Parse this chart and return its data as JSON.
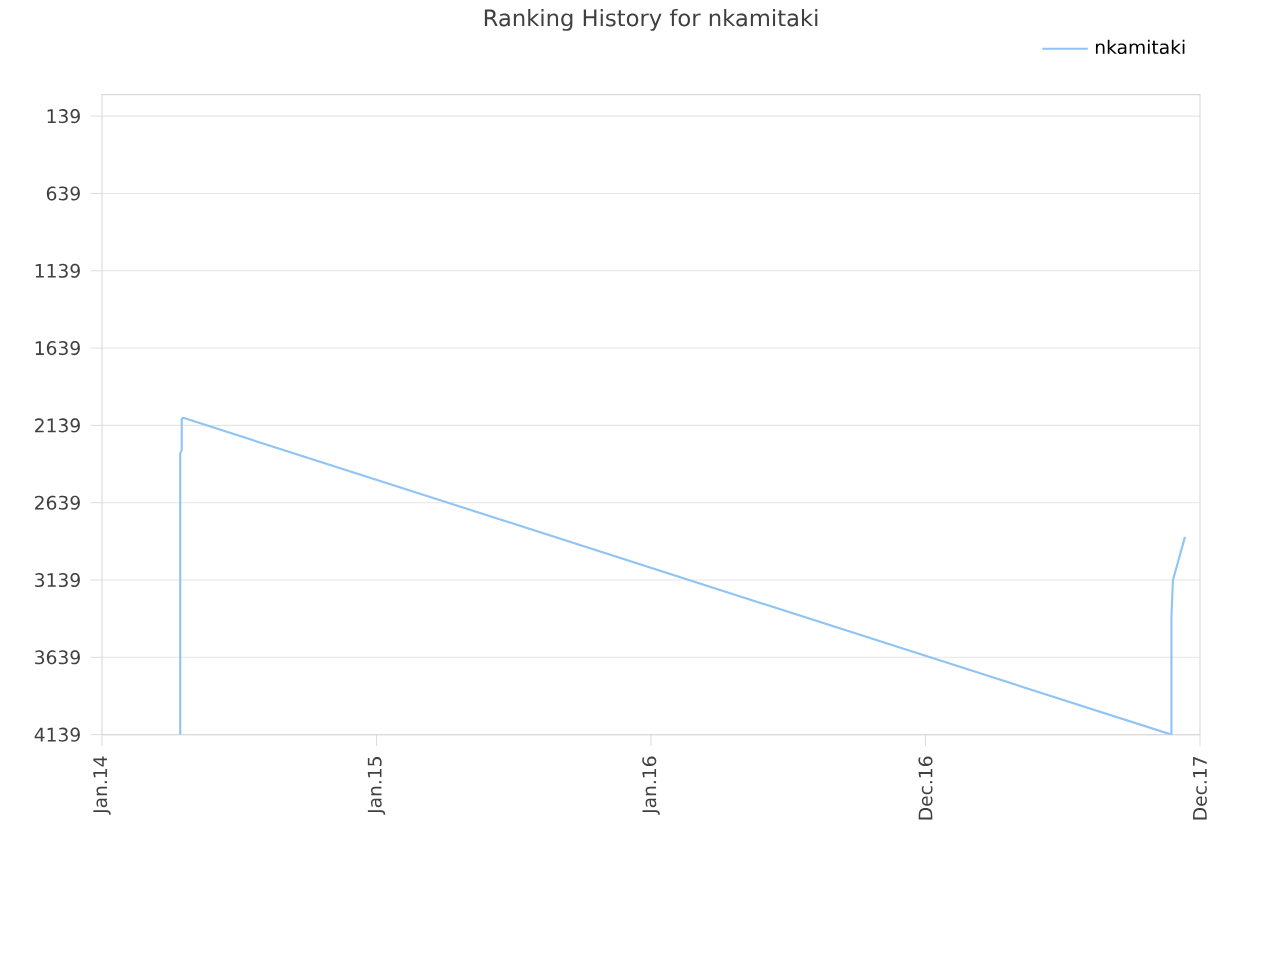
{
  "chart_data": {
    "type": "line",
    "title": "Ranking History for nkamitaki",
    "x": [
      "2014-04-15",
      "2014-04-15",
      "2014-04-17",
      "2014-04-17",
      "2014-04-19",
      "2017-11-23",
      "2017-11-23",
      "2017-11-25",
      "2017-12-11"
    ],
    "series": [
      {
        "name": "nkamitaki",
        "color": "#90c4f4",
        "values": [
          4139,
          2320,
          2300,
          2100,
          2090,
          4139,
          3380,
          3140,
          2860
        ]
      }
    ],
    "xlim": [
      "2014-01-01",
      "2017-12-31"
    ],
    "xticks": [
      {
        "value": "2014-01-01",
        "label": "Jan.14"
      },
      {
        "value": "2015-01-01",
        "label": "Jan.15"
      },
      {
        "value": "2016-01-01",
        "label": "Jan.16"
      },
      {
        "value": "2016-12-31",
        "label": "Dec.16"
      },
      {
        "value": "2017-12-31",
        "label": "Dec.17"
      }
    ],
    "ylim": [
      4139,
      0
    ],
    "yticks": [
      139,
      639,
      1139,
      1639,
      2139,
      2639,
      3139,
      3639,
      4139
    ],
    "grid": "y",
    "legend": "top right"
  }
}
